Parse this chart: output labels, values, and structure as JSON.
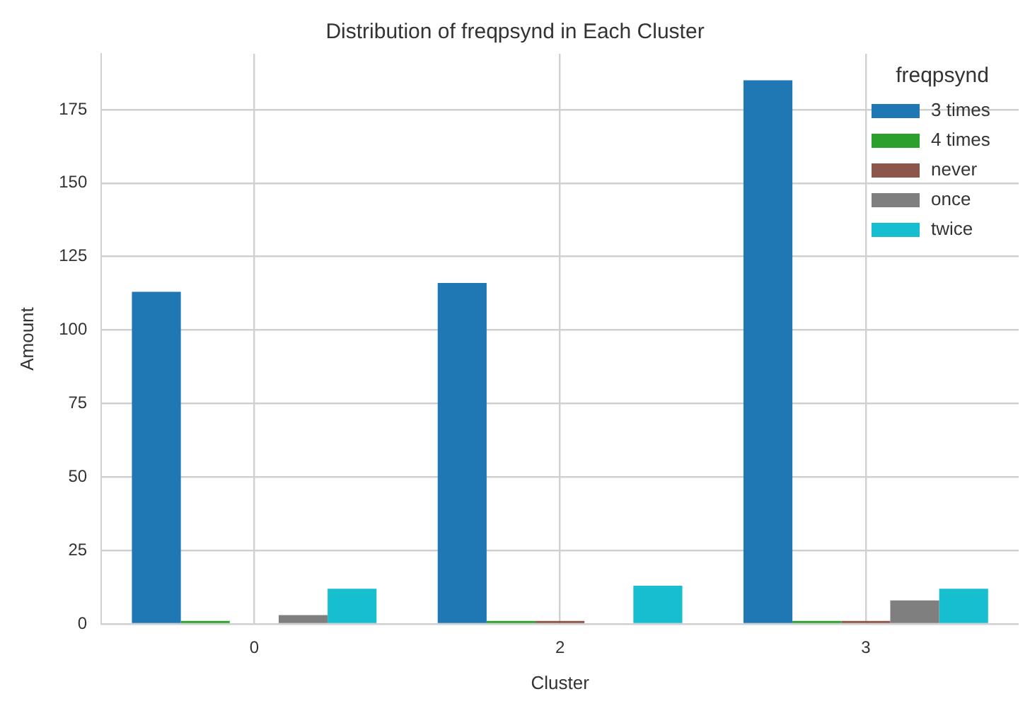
{
  "chart_data": {
    "type": "bar",
    "title": "Distribution of freqpsynd in Each Cluster",
    "xlabel": "Cluster",
    "ylabel": "Amount",
    "legend_title": "freqpsynd",
    "categories": [
      "0",
      "2",
      "3"
    ],
    "series": [
      {
        "name": "3 times",
        "color": "#1f77b4",
        "values": [
          113,
          116,
          185
        ]
      },
      {
        "name": "4 times",
        "color": "#2ca02c",
        "values": [
          1,
          1,
          1
        ]
      },
      {
        "name": "never",
        "color": "#8c564b",
        "values": [
          0,
          1,
          1
        ]
      },
      {
        "name": "once",
        "color": "#7f7f7f",
        "values": [
          3,
          0,
          8
        ]
      },
      {
        "name": "twice",
        "color": "#17becf",
        "values": [
          12,
          13,
          12
        ]
      }
    ],
    "ylim": [
      0,
      194
    ],
    "yticks": [
      0,
      25,
      50,
      75,
      100,
      125,
      150,
      175
    ],
    "grid": true,
    "legend": "top right"
  }
}
